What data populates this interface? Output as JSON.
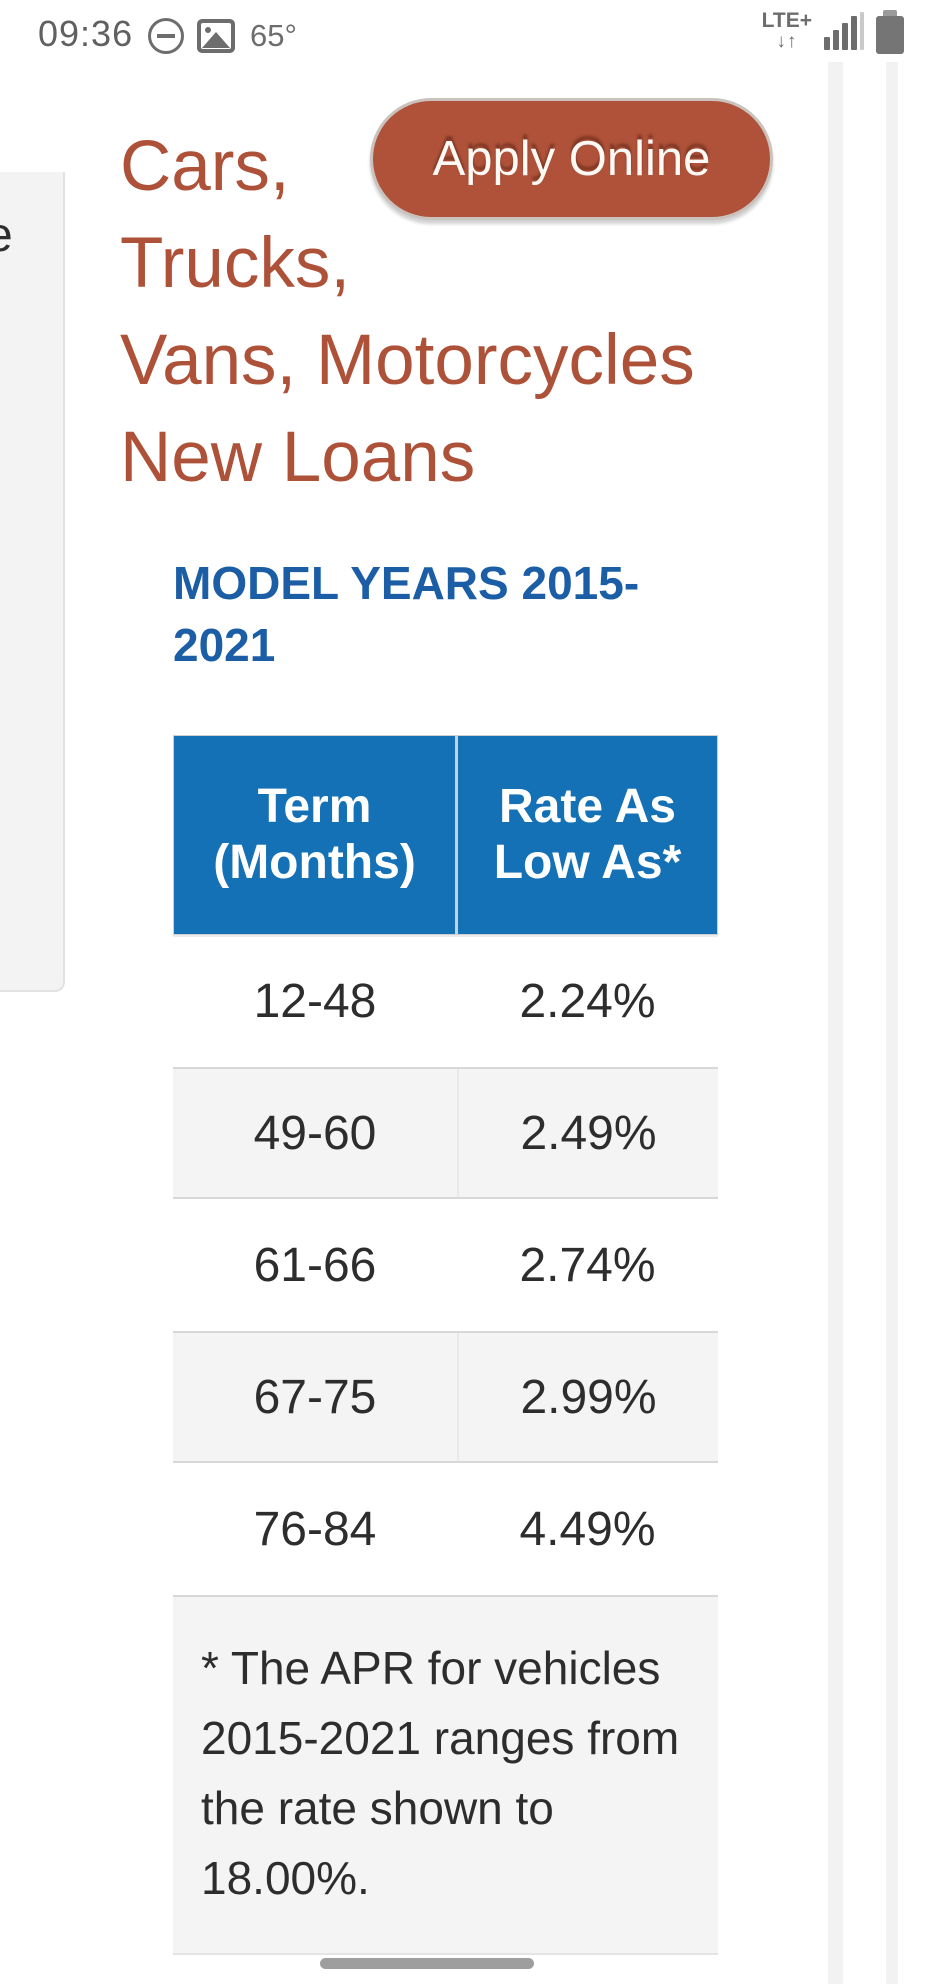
{
  "status_bar": {
    "time": "09:36",
    "temperature": "65°",
    "network_label": "LTE+",
    "network_arrows": "↓↑",
    "icons": [
      "do-not-disturb-icon",
      "photo-icon",
      "signal-strength-icon",
      "battery-icon"
    ]
  },
  "side_panel": {
    "visible_text_fragment": "e"
  },
  "page": {
    "heading_lines": [
      "Cars,",
      "Trucks,",
      "Vans, Motorcycles",
      "New Loans"
    ],
    "apply_button_label": "Apply Online",
    "section_heading_lines": [
      "MODEL YEARS 2015-",
      "2021"
    ],
    "table": {
      "column_headers": [
        "Term (Months)",
        "Rate As Low As*"
      ],
      "column_header_lines": [
        [
          "Term",
          "(Months)"
        ],
        [
          "Rate As",
          "Low As*"
        ]
      ],
      "rows": [
        {
          "term": "12-48",
          "rate": "2.24%"
        },
        {
          "term": "49-60",
          "rate": "2.49%"
        },
        {
          "term": "61-66",
          "rate": "2.74%"
        },
        {
          "term": "67-75",
          "rate": "2.99%"
        },
        {
          "term": "76-84",
          "rate": "4.49%"
        }
      ],
      "footnote": "* The APR for vehicles 2015-2021 ranges from the rate shown to 18.00%."
    }
  },
  "colors": {
    "heading_rust": "#ad5138",
    "button_background": "#b0523a",
    "button_border": "#c9c2bd",
    "section_heading_blue": "#1b5ea6",
    "table_header_blue": "#1571b5",
    "row_alt_background": "#f4f4f4",
    "row_border": "#d8d8d8",
    "body_text": "#2d2d2d",
    "status_bar_gray": "#6d6d6d",
    "scroll_pill_gray": "#9e9e9e"
  }
}
